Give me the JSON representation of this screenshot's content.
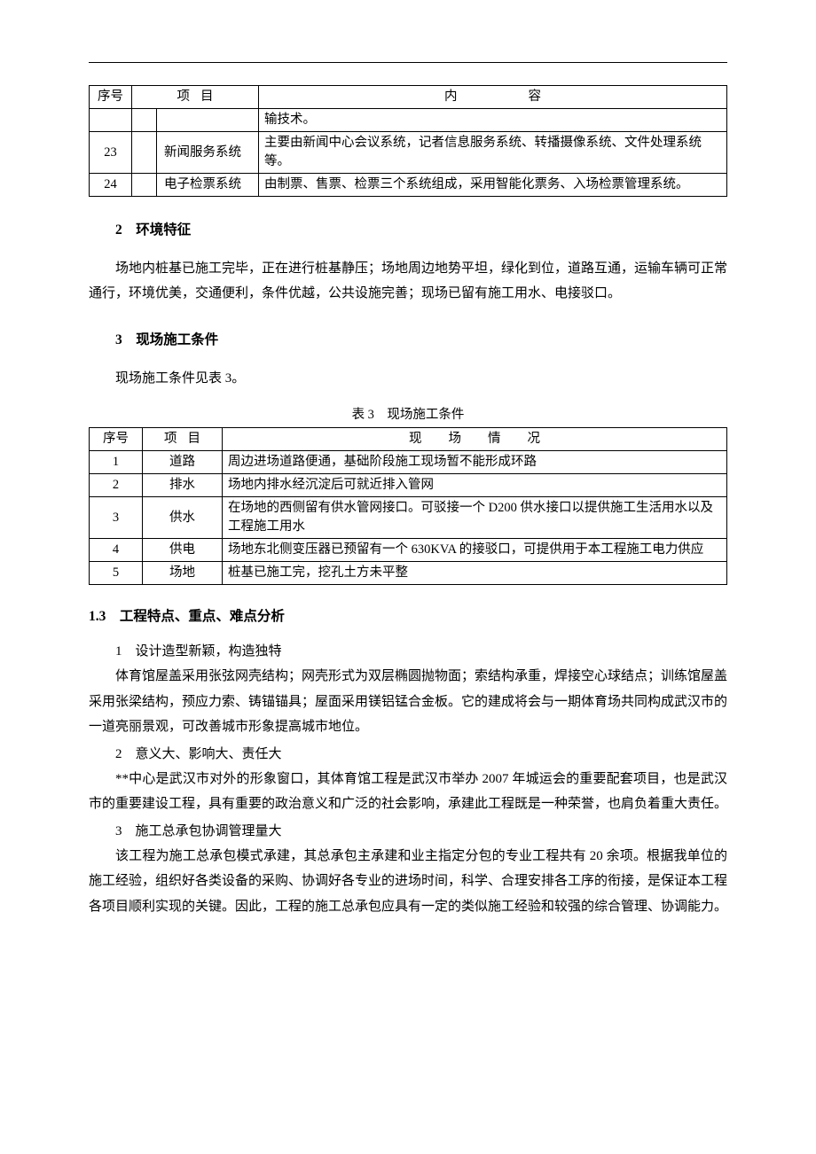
{
  "colors": {
    "text": "#000000",
    "bg": "#ffffff",
    "border": "#000000"
  },
  "typography": {
    "font_family": "SimSun",
    "body_pt": 11,
    "heading_pt": 12
  },
  "table1": {
    "type": "table",
    "headers": {
      "seq": "序号",
      "item": "项目",
      "content": "内容"
    },
    "rows": [
      {
        "seq": "",
        "item": "",
        "content": "输技术。"
      },
      {
        "seq": "23",
        "item": "新闻服务系统",
        "content": "主要由新闻中心会议系统，记者信息服务系统、转播摄像系统、文件处理系统等。"
      },
      {
        "seq": "24",
        "item": "电子检票系统",
        "content": "由制票、售票、检票三个系统组成，采用智能化票务、入场检票管理系统。"
      }
    ]
  },
  "sec2": {
    "heading": "2　环境特征",
    "para": "场地内桩基已施工完毕，正在进行桩基静压；场地周边地势平坦，绿化到位，道路互通，运输车辆可正常通行，环境优美，交通便利，条件优越，公共设施完善；现场已留有施工用水、电接驳口。"
  },
  "sec3": {
    "heading": "3　现场施工条件",
    "para": "现场施工条件见表 3。",
    "caption": "表 3　现场施工条件"
  },
  "table3": {
    "type": "table",
    "headers": {
      "seq": "序号",
      "item": "项目",
      "situation": "现场情况"
    },
    "rows": [
      {
        "seq": "1",
        "item": "道路",
        "situation": "周边进场道路便通，基础阶段施工现场暂不能形成环路"
      },
      {
        "seq": "2",
        "item": "排水",
        "situation": "场地内排水经沉淀后可就近排入管网"
      },
      {
        "seq": "3",
        "item": "供水",
        "situation": "在场地的西侧留有供水管网接口。可驳接一个 D200 供水接口以提供施工生活用水以及工程施工用水"
      },
      {
        "seq": "4",
        "item": "供电",
        "situation": "场地东北侧变压器已预留有一个 630KVA 的接驳口，可提供用于本工程施工电力供应"
      },
      {
        "seq": "5",
        "item": "场地",
        "situation": "桩基已施工完，挖孔土方未平整"
      }
    ]
  },
  "sec13": {
    "heading": "1.3　工程特点、重点、难点分析",
    "items": [
      {
        "num": "1　设计造型新颖，构造独特",
        "para": "体育馆屋盖采用张弦网壳结构；网壳形式为双层椭圆抛物面；索结构承重，焊接空心球结点；训练馆屋盖采用张梁结构，预应力索、铸锚锚具；屋面采用镁铝锰合金板。它的建成将会与一期体育场共同构成武汉市的一道亮丽景观，可改善城市形象提高城市地位。"
      },
      {
        "num": "2　意义大、影响大、责任大",
        "para": "**中心是武汉市对外的形象窗口，其体育馆工程是武汉市举办 2007 年城运会的重要配套项目，也是武汉市的重要建设工程，具有重要的政治意义和广泛的社会影响，承建此工程既是一种荣誉，也肩负着重大责任。"
      },
      {
        "num": "3　施工总承包协调管理量大",
        "para": "该工程为施工总承包模式承建，其总承包主承建和业主指定分包的专业工程共有 20 余项。根据我单位的施工经验，组织好各类设备的采购、协调好各专业的进场时间，科学、合理安排各工序的衔接，是保证本工程各项目顺利实现的关键。因此，工程的施工总承包应具有一定的类似施工经验和较强的综合管理、协调能力。"
      }
    ]
  }
}
